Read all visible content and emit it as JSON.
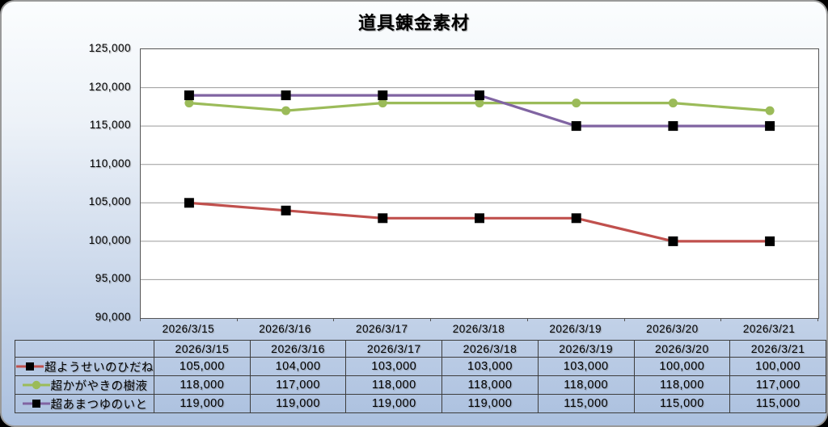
{
  "title": "道具錬金素材",
  "chart_data": {
    "type": "line",
    "title": "道具錬金素材",
    "categories": [
      "2026/3/15",
      "2026/3/16",
      "2026/3/17",
      "2026/3/18",
      "2026/3/19",
      "2026/3/20",
      "2026/3/21"
    ],
    "series": [
      {
        "name": "超ようせいのひだね",
        "color": "#c0504d",
        "marker": "square",
        "marker_color": "#000000",
        "values": [
          105000,
          104000,
          103000,
          103000,
          103000,
          100000,
          100000
        ]
      },
      {
        "name": "超かがやきの樹液",
        "color": "#9bbb59",
        "marker": "circle",
        "marker_color": "#9bbb59",
        "values": [
          118000,
          117000,
          118000,
          118000,
          118000,
          118000,
          117000
        ]
      },
      {
        "name": "超あまつゆのいと",
        "color": "#8064a2",
        "marker": "square",
        "marker_color": "#000000",
        "values": [
          119000,
          119000,
          119000,
          119000,
          115000,
          115000,
          115000
        ]
      }
    ],
    "ylim": [
      90000,
      125000
    ],
    "ytick_step": 5000,
    "y_tick_labels": [
      "125,000",
      "120,000",
      "115,000",
      "110,000",
      "105,000",
      "100,000",
      "95,000",
      "90,000"
    ],
    "grid": true,
    "legend_position": "table-left",
    "colors": {
      "plot_background": "#ffffff",
      "gridline": "#9a9a9a",
      "plot_border": "#555555",
      "frame_gradient_top": "#fbfdfe",
      "frame_gradient_bottom": "#abc0df"
    }
  },
  "table": {
    "rows": [
      {
        "label": "超ようせいのひだね",
        "values": [
          "105,000",
          "104,000",
          "103,000",
          "103,000",
          "103,000",
          "100,000",
          "100,000"
        ]
      },
      {
        "label": "超かがやきの樹液",
        "values": [
          "118,000",
          "117,000",
          "118,000",
          "118,000",
          "118,000",
          "118,000",
          "117,000"
        ]
      },
      {
        "label": "超あまつゆのいと",
        "values": [
          "119,000",
          "119,000",
          "119,000",
          "119,000",
          "115,000",
          "115,000",
          "115,000"
        ]
      }
    ]
  }
}
